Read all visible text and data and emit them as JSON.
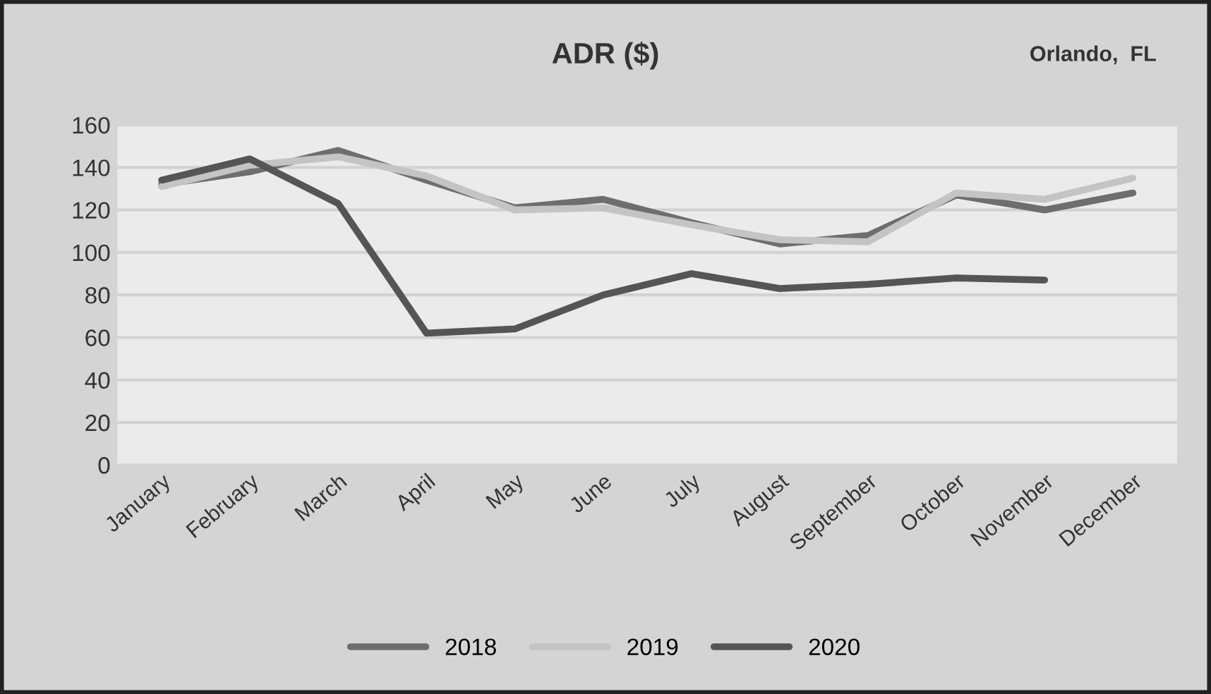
{
  "chart_data": {
    "type": "line",
    "title": "ADR ($)",
    "annotations": [
      "Orlando,  FL"
    ],
    "categories": [
      "January",
      "February",
      "March",
      "April",
      "May",
      "June",
      "July",
      "August",
      "September",
      "October",
      "November",
      "December"
    ],
    "series": [
      {
        "name": "2018",
        "color": "#6e6e6e",
        "values": [
          132,
          138,
          148,
          134,
          121,
          125,
          114,
          104,
          108,
          127,
          120,
          128
        ]
      },
      {
        "name": "2019",
        "color": "#c4c4c4",
        "values": [
          131,
          141,
          145,
          136,
          120,
          121,
          113,
          106,
          105,
          128,
          125,
          135
        ]
      },
      {
        "name": "2020",
        "color": "#555555",
        "values": [
          134,
          144,
          123,
          62,
          64,
          80,
          90,
          83,
          85,
          88,
          87,
          null
        ]
      }
    ],
    "ylim": [
      0,
      160
    ],
    "yticks": [
      0,
      20,
      40,
      60,
      80,
      100,
      120,
      140,
      160
    ],
    "grid": "y",
    "legend": "bottom",
    "marker": "none",
    "line_style": "solid"
  }
}
